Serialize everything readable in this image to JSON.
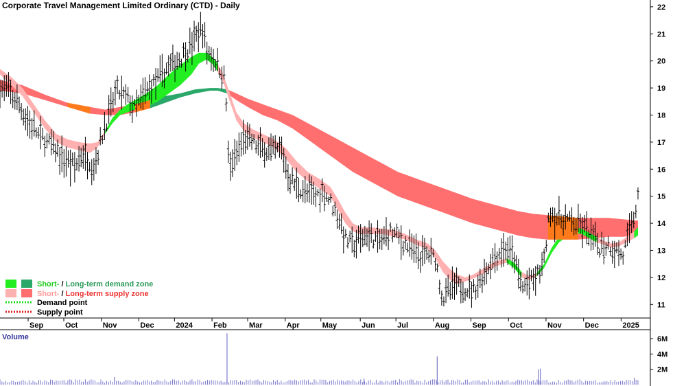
{
  "chart_data": {
    "type": "candlestick",
    "title": "Corporate Travel Management Limited Ordinary (CTD) - Daily",
    "ylim": [
      10.5,
      22.2
    ],
    "y_ticks": [
      11,
      12,
      13,
      14,
      15,
      16,
      17,
      18,
      19,
      20,
      21,
      22
    ],
    "x_ticks": [
      {
        "label": "Sep",
        "x": 0.15
      },
      {
        "label": "Oct",
        "x": 1.1
      },
      {
        "label": "Nov",
        "x": 2.1
      },
      {
        "label": "Dec",
        "x": 3.1
      },
      {
        "label": "2024",
        "x": 4.05
      },
      {
        "label": "Feb",
        "x": 5.05
      },
      {
        "label": "Mar",
        "x": 6.0
      },
      {
        "label": "Apr",
        "x": 7.0
      },
      {
        "label": "May",
        "x": 7.95
      },
      {
        "label": "Jun",
        "x": 9.0
      },
      {
        "label": "Jul",
        "x": 9.95
      },
      {
        "label": "Aug",
        "x": 10.95
      },
      {
        "label": "Sep",
        "x": 11.95
      },
      {
        "label": "Oct",
        "x": 12.95
      },
      {
        "label": "Nov",
        "x": 13.95
      },
      {
        "label": "Dec",
        "x": 14.95
      },
      {
        "label": "2025",
        "x": 15.95
      }
    ],
    "xlim": [
      -0.6,
      16.4
    ],
    "price_path": [
      [
        -0.6,
        19.0
      ],
      [
        -0.4,
        18.9
      ],
      [
        -0.2,
        18.6
      ],
      [
        0.1,
        17.9
      ],
      [
        0.4,
        17.3
      ],
      [
        0.8,
        16.8
      ],
      [
        1.1,
        16.4
      ],
      [
        1.4,
        16.1
      ],
      [
        1.6,
        16.6
      ],
      [
        1.9,
        16.1
      ],
      [
        2.2,
        17.6
      ],
      [
        2.5,
        18.9
      ],
      [
        2.8,
        18.6
      ],
      [
        3.0,
        18.2
      ],
      [
        3.3,
        18.9
      ],
      [
        3.6,
        19.3
      ],
      [
        3.9,
        19.8
      ],
      [
        4.2,
        20.1
      ],
      [
        4.5,
        20.6
      ],
      [
        4.7,
        21.1
      ],
      [
        4.8,
        21.2
      ],
      [
        4.9,
        20.4
      ],
      [
        5.1,
        20.1
      ],
      [
        5.3,
        19.6
      ],
      [
        5.4,
        19.3
      ],
      [
        5.5,
        16.0
      ],
      [
        5.7,
        16.5
      ],
      [
        5.9,
        17.2
      ],
      [
        6.1,
        17.0
      ],
      [
        6.3,
        16.8
      ],
      [
        6.6,
        16.6
      ],
      [
        6.9,
        16.7
      ],
      [
        7.1,
        15.7
      ],
      [
        7.3,
        15.4
      ],
      [
        7.6,
        15.1
      ],
      [
        7.8,
        15.0
      ],
      [
        8.0,
        15.2
      ],
      [
        8.2,
        14.8
      ],
      [
        8.4,
        14.3
      ],
      [
        8.6,
        13.4
      ],
      [
        8.8,
        13.2
      ],
      [
        9.0,
        13.4
      ],
      [
        9.2,
        13.6
      ],
      [
        9.5,
        13.3
      ],
      [
        9.8,
        13.7
      ],
      [
        10.0,
        13.5
      ],
      [
        10.3,
        13.1
      ],
      [
        10.6,
        12.8
      ],
      [
        10.8,
        12.9
      ],
      [
        11.0,
        12.7
      ],
      [
        11.2,
        11.2
      ],
      [
        11.5,
        11.7
      ],
      [
        11.8,
        11.6
      ],
      [
        12.0,
        11.5
      ],
      [
        12.3,
        12.1
      ],
      [
        12.5,
        12.6
      ],
      [
        12.7,
        12.9
      ],
      [
        12.9,
        13.1
      ],
      [
        13.1,
        12.7
      ],
      [
        13.3,
        11.6
      ],
      [
        13.5,
        11.8
      ],
      [
        13.7,
        12.0
      ],
      [
        13.9,
        12.6
      ],
      [
        14.05,
        14.5
      ],
      [
        14.2,
        14.2
      ],
      [
        14.5,
        14.1
      ],
      [
        14.8,
        13.9
      ],
      [
        15.0,
        13.8
      ],
      [
        15.2,
        13.4
      ],
      [
        15.4,
        13.1
      ],
      [
        15.6,
        13.2
      ],
      [
        15.8,
        13.0
      ],
      [
        16.0,
        12.8
      ],
      [
        16.15,
        13.5
      ],
      [
        16.3,
        14.3
      ],
      [
        16.4,
        14.9
      ]
    ],
    "short_zone": [
      [
        -0.6,
        19.7,
        19.5
      ],
      [
        -0.3,
        19.4,
        19.1
      ],
      [
        0.0,
        19.0,
        18.7
      ],
      [
        0.3,
        18.4,
        18.1
      ],
      [
        0.6,
        17.8,
        17.5
      ],
      [
        0.9,
        17.3,
        17.0
      ],
      [
        1.2,
        17.1,
        16.8
      ],
      [
        1.5,
        17.0,
        16.7
      ],
      [
        1.8,
        16.95,
        16.6
      ],
      [
        2.0,
        17.0,
        16.8
      ],
      [
        2.2,
        17.4,
        17.3
      ],
      [
        2.4,
        17.9,
        17.7
      ],
      [
        2.6,
        18.2,
        18.0
      ],
      [
        2.8,
        18.4,
        18.1
      ],
      [
        3.0,
        18.55,
        18.2
      ],
      [
        3.3,
        18.8,
        18.3
      ],
      [
        3.6,
        19.1,
        18.5
      ],
      [
        3.9,
        19.5,
        18.8
      ],
      [
        4.2,
        19.85,
        19.1
      ],
      [
        4.5,
        20.15,
        19.5
      ],
      [
        4.7,
        20.3,
        19.9
      ],
      [
        4.9,
        20.3,
        20.05
      ],
      [
        5.05,
        20.15,
        19.9
      ],
      [
        5.2,
        19.9,
        19.6
      ],
      [
        5.35,
        19.5,
        19.2
      ],
      [
        5.5,
        18.9,
        18.6
      ],
      [
        5.7,
        18.1,
        17.8
      ],
      [
        5.9,
        17.7,
        17.4
      ],
      [
        6.1,
        17.5,
        17.2
      ],
      [
        6.4,
        17.3,
        17.0
      ],
      [
        6.7,
        17.1,
        16.8
      ],
      [
        7.0,
        16.8,
        16.4
      ],
      [
        7.3,
        16.3,
        15.9
      ],
      [
        7.6,
        15.9,
        15.55
      ],
      [
        7.9,
        15.65,
        15.3
      ],
      [
        8.2,
        15.35,
        15.0
      ],
      [
        8.4,
        14.9,
        14.5
      ],
      [
        8.6,
        14.4,
        14.0
      ],
      [
        8.8,
        14.0,
        13.7
      ],
      [
        9.0,
        13.85,
        13.6
      ],
      [
        9.3,
        13.85,
        13.6
      ],
      [
        9.6,
        13.8,
        13.6
      ],
      [
        9.9,
        13.75,
        13.5
      ],
      [
        10.2,
        13.6,
        13.4
      ],
      [
        10.5,
        13.4,
        13.2
      ],
      [
        10.8,
        13.25,
        13.05
      ],
      [
        11.0,
        13.0,
        12.7
      ],
      [
        11.2,
        12.6,
        12.2
      ],
      [
        11.4,
        12.3,
        11.9
      ],
      [
        11.6,
        12.1,
        11.75
      ],
      [
        11.8,
        12.0,
        11.85
      ],
      [
        12.0,
        12.1,
        11.95
      ],
      [
        12.3,
        12.35,
        12.15
      ],
      [
        12.6,
        12.6,
        12.4
      ],
      [
        12.9,
        12.7,
        12.55
      ],
      [
        13.1,
        12.55,
        12.35
      ],
      [
        13.3,
        12.2,
        12.0
      ],
      [
        13.5,
        12.05,
        11.9
      ],
      [
        13.7,
        12.15,
        12.05
      ],
      [
        13.9,
        12.5,
        12.35
      ],
      [
        14.1,
        13.1,
        12.9
      ],
      [
        14.3,
        13.5,
        13.3
      ],
      [
        14.5,
        13.75,
        13.5
      ],
      [
        14.7,
        13.85,
        13.65
      ],
      [
        14.9,
        13.8,
        13.6
      ],
      [
        15.1,
        13.65,
        13.45
      ],
      [
        15.3,
        13.5,
        13.3
      ],
      [
        15.5,
        13.35,
        13.2
      ],
      [
        15.7,
        13.25,
        13.1
      ],
      [
        15.9,
        13.3,
        13.15
      ],
      [
        16.1,
        13.5,
        13.3
      ],
      [
        16.3,
        13.7,
        13.45
      ],
      [
        16.4,
        13.85,
        13.55
      ]
    ],
    "long_zone": [
      [
        -0.6,
        19.3,
        18.9
      ],
      [
        0.0,
        19.1,
        18.8
      ],
      [
        0.6,
        18.75,
        18.55
      ],
      [
        1.2,
        18.45,
        18.3
      ],
      [
        1.8,
        18.3,
        18.05
      ],
      [
        2.2,
        18.2,
        18.0
      ],
      [
        2.6,
        18.3,
        18.0
      ],
      [
        3.0,
        18.4,
        18.1
      ],
      [
        3.4,
        18.55,
        18.25
      ],
      [
        3.8,
        18.7,
        18.45
      ],
      [
        4.2,
        18.8,
        18.65
      ],
      [
        4.6,
        18.95,
        18.8
      ],
      [
        5.0,
        19.0,
        18.9
      ],
      [
        5.2,
        19.0,
        18.9
      ],
      [
        5.45,
        18.95,
        18.8
      ],
      [
        5.7,
        18.8,
        18.55
      ],
      [
        6.0,
        18.6,
        18.3
      ],
      [
        6.4,
        18.4,
        18.0
      ],
      [
        6.8,
        18.2,
        17.8
      ],
      [
        7.2,
        18.0,
        17.5
      ],
      [
        7.6,
        17.7,
        17.1
      ],
      [
        8.0,
        17.4,
        16.7
      ],
      [
        8.4,
        17.1,
        16.3
      ],
      [
        8.8,
        16.8,
        15.9
      ],
      [
        9.2,
        16.5,
        15.6
      ],
      [
        9.6,
        16.2,
        15.3
      ],
      [
        10.0,
        15.9,
        15.0
      ],
      [
        10.4,
        15.7,
        14.8
      ],
      [
        10.8,
        15.5,
        14.6
      ],
      [
        11.2,
        15.3,
        14.4
      ],
      [
        11.6,
        15.1,
        14.2
      ],
      [
        12.0,
        14.9,
        14.0
      ],
      [
        12.4,
        14.75,
        13.85
      ],
      [
        12.8,
        14.6,
        13.7
      ],
      [
        13.2,
        14.45,
        13.55
      ],
      [
        13.6,
        14.35,
        13.45
      ],
      [
        14.0,
        14.3,
        13.4
      ],
      [
        14.4,
        14.25,
        13.4
      ],
      [
        14.8,
        14.2,
        13.4
      ],
      [
        15.2,
        14.2,
        13.45
      ],
      [
        15.6,
        14.2,
        13.5
      ],
      [
        16.0,
        14.15,
        13.5
      ],
      [
        16.4,
        14.1,
        13.55
      ]
    ],
    "legend": [
      {
        "a": "Short-",
        "b": " / ",
        "c": "Long-term demand zone"
      },
      {
        "a": "Short-",
        "b": " / ",
        "c": "Long-term supply zone"
      },
      {
        "a": "Demand point"
      },
      {
        "a": "Supply point"
      }
    ],
    "colors": {
      "short_demand": "#22ee22",
      "long_demand": "#2aa86a",
      "short_supply": "#ffb0b0",
      "long_supply": "#ff6f6f",
      "overlap": "#ff7a1a",
      "demand_point": "#22dd22",
      "supply_point": "#dd2222",
      "volume": "#7777cc"
    },
    "volume": {
      "title": "Volume",
      "ylim": [
        0,
        7
      ],
      "y_ticks": [
        {
          "label": "2M",
          "v": 2
        },
        {
          "label": "4M",
          "v": 4
        },
        {
          "label": "6M",
          "v": 6
        }
      ],
      "spikes": [
        [
          5.45,
          6.7
        ],
        [
          11.05,
          3.7
        ],
        [
          13.8,
          2.1
        ],
        [
          13.75,
          2.0
        ],
        [
          16.3,
          0.9
        ],
        [
          2.45,
          1.0
        ],
        [
          9.1,
          0.8
        ]
      ]
    }
  }
}
